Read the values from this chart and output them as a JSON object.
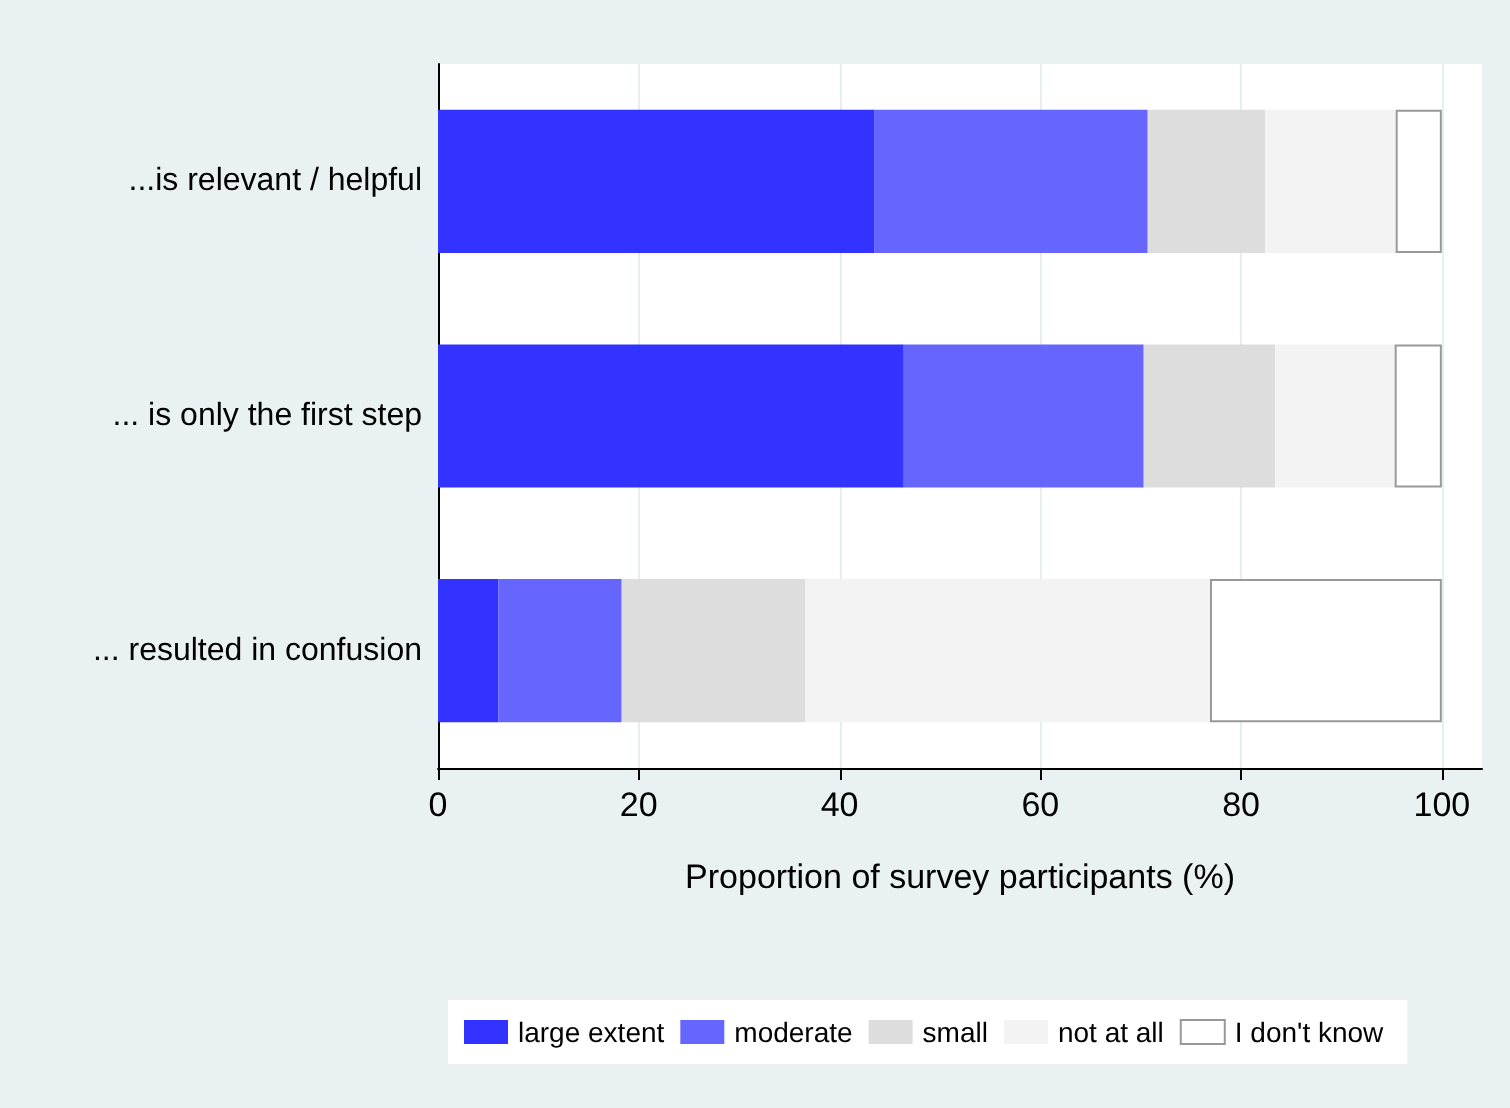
{
  "chart_data": {
    "type": "bar",
    "orientation": "horizontal",
    "stacked": true,
    "xlabel": "Proportion of survey participants (%)",
    "categories": [
      "...is relevant / helpful",
      "... is only the first step",
      "... resulted in confusion"
    ],
    "series": [
      {
        "name": "large extent",
        "color": "#3333ff",
        "values": [
          43.5,
          46.4,
          6.0
        ]
      },
      {
        "name": "moderate",
        "color": "#6666ff",
        "values": [
          27.2,
          23.9,
          12.3
        ]
      },
      {
        "name": "small",
        "color": "#dddddd",
        "values": [
          11.7,
          13.1,
          18.3
        ]
      },
      {
        "name": "not at all",
        "color": "#f3f3f3",
        "values": [
          13.0,
          11.9,
          40.3
        ]
      },
      {
        "name": "I don't know",
        "color": "#ffffff",
        "values": [
          4.6,
          4.7,
          23.1
        ]
      }
    ],
    "xlim": [
      0,
      104
    ],
    "xticks": [
      0,
      20,
      40,
      60,
      80,
      100
    ],
    "grid": "x",
    "legend": "bottom"
  }
}
